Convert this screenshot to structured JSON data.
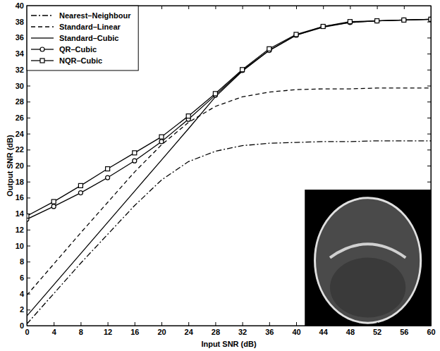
{
  "chart_data": {
    "type": "line",
    "x_label": "Input SNR (dB)",
    "y_label": "Output SNR (dB)",
    "x": [
      0,
      4,
      8,
      12,
      16,
      20,
      24,
      28,
      32,
      36,
      40,
      44,
      48,
      52,
      56,
      60
    ],
    "xlim": [
      0,
      60
    ],
    "xticks": [
      0,
      4,
      8,
      12,
      16,
      20,
      24,
      28,
      32,
      36,
      40,
      44,
      48,
      52,
      56,
      60
    ],
    "ylim": [
      0,
      40
    ],
    "yticks": [
      0,
      2,
      4,
      6,
      8,
      10,
      12,
      14,
      16,
      18,
      20,
      22,
      24,
      26,
      28,
      30,
      32,
      34,
      36,
      38,
      40
    ],
    "grid": false,
    "legend": "upper left",
    "series": [
      {
        "name": "Nearest–Neighbour",
        "color": "#000000",
        "line_style": "dashdot",
        "values": [
          0.2,
          4.0,
          7.8,
          11.4,
          15.0,
          18.2,
          20.5,
          21.8,
          22.5,
          22.8,
          22.9,
          23.0,
          23.0,
          23.1,
          23.1,
          23.1
        ]
      },
      {
        "name": "Standard–Linear",
        "color": "#000000",
        "line_style": "dashed",
        "values": [
          3.8,
          7.7,
          11.6,
          15.4,
          19.2,
          22.6,
          25.4,
          27.4,
          28.6,
          29.2,
          29.5,
          29.6,
          29.6,
          29.7,
          29.7,
          29.7
        ]
      },
      {
        "name": "Standard–Cubic",
        "color": "#000000",
        "line_style": "solid",
        "values": [
          1.2,
          5.1,
          9.0,
          12.9,
          16.8,
          20.7,
          24.6,
          28.6,
          31.8,
          34.4,
          36.3,
          37.3,
          37.9,
          38.1,
          38.2,
          38.3
        ]
      },
      {
        "name": "QR–Cubic",
        "color": "#000000",
        "line_style": "solid",
        "marker": "circle",
        "values": [
          13.3,
          14.9,
          16.6,
          18.5,
          20.6,
          23.0,
          25.8,
          28.8,
          31.9,
          34.4,
          36.3,
          37.4,
          37.9,
          38.1,
          38.2,
          38.3
        ]
      },
      {
        "name": "NQR–Cubic",
        "color": "#000000",
        "line_style": "solid",
        "marker": "square",
        "values": [
          13.7,
          15.5,
          17.5,
          19.6,
          21.6,
          23.6,
          26.2,
          29.0,
          32.0,
          34.6,
          36.4,
          37.4,
          38.0,
          38.1,
          38.2,
          38.3
        ]
      }
    ]
  }
}
